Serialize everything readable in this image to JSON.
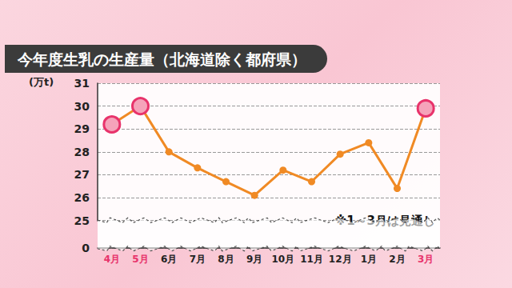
{
  "chart_data": {
    "type": "line",
    "title": "今年度生乳の生産量（北海道除く都府県）",
    "ylabel": "(万t)",
    "annotation": "※1～3月は見通し",
    "categories": [
      "4月",
      "5月",
      "6月",
      "7月",
      "8月",
      "9月",
      "10月",
      "11月",
      "12月",
      "1月",
      "2月",
      "3月"
    ],
    "values": [
      29.2,
      30.0,
      28.0,
      27.3,
      26.7,
      26.1,
      27.2,
      26.7,
      27.9,
      28.4,
      26.4,
      29.9
    ],
    "color": "#f08a24",
    "colors": [
      "#e8336b",
      "#e8336b",
      "#f08a24",
      "#f08a24",
      "#f08a24",
      "#f08a24",
      "#f08a24",
      "#f08a24",
      "#f08a24",
      "#f08a24",
      "#f08a24",
      "#e8336b"
    ],
    "marker": "circle",
    "ylim": [
      0,
      31
    ],
    "yticks": [
      0,
      25,
      26,
      27,
      28,
      29,
      30,
      31
    ],
    "grid": true
  }
}
